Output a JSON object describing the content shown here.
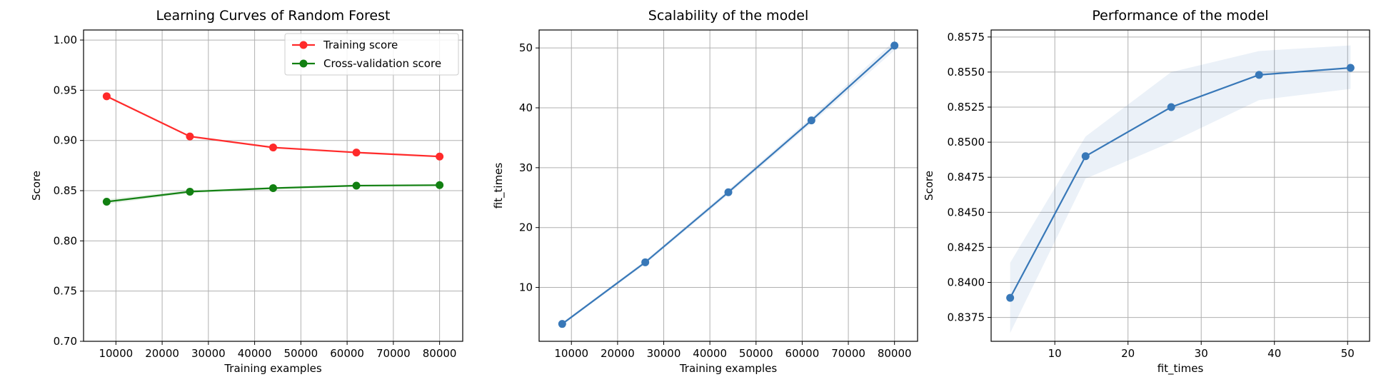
{
  "chart_data": [
    {
      "type": "line",
      "title": "Learning Curves of Random Forest",
      "xlabel": "Training examples",
      "ylabel": "Score",
      "xlim": [
        3000,
        85000
      ],
      "ylim": [
        0.7,
        1.01
      ],
      "xticks": [
        10000,
        20000,
        30000,
        40000,
        50000,
        60000,
        70000,
        80000
      ],
      "xtick_labels": [
        "10000",
        "20000",
        "30000",
        "40000",
        "50000",
        "60000",
        "70000",
        "80000"
      ],
      "yticks": [
        0.7,
        0.75,
        0.8,
        0.85,
        0.9,
        0.95,
        1.0
      ],
      "ytick_labels": [
        "0.70",
        "0.75",
        "0.80",
        "0.85",
        "0.90",
        "0.95",
        "1.00"
      ],
      "grid": true,
      "legend": "top-right",
      "x": [
        8000,
        26000,
        44000,
        62000,
        80000
      ],
      "series": [
        {
          "name": "Training score",
          "color": "#ff2a2a",
          "values": [
            0.944,
            0.904,
            0.893,
            0.888,
            0.884
          ],
          "band": [
            0.001,
            0.001,
            0.001,
            0.001,
            0.001
          ]
        },
        {
          "name": "Cross-validation score",
          "color": "#128012",
          "values": [
            0.839,
            0.849,
            0.8525,
            0.855,
            0.8555
          ],
          "band": [
            0.0025,
            0.0015,
            0.001,
            0.001,
            0.001
          ]
        }
      ]
    },
    {
      "type": "line",
      "title": "Scalability of the model",
      "xlabel": "Training examples",
      "ylabel": "fit_times",
      "xlim": [
        3000,
        85000
      ],
      "ylim": [
        1,
        53
      ],
      "xticks": [
        10000,
        20000,
        30000,
        40000,
        50000,
        60000,
        70000,
        80000
      ],
      "xtick_labels": [
        "10000",
        "20000",
        "30000",
        "40000",
        "50000",
        "60000",
        "70000",
        "80000"
      ],
      "yticks": [
        10,
        20,
        30,
        40,
        50
      ],
      "ytick_labels": [
        "10",
        "20",
        "30",
        "40",
        "50"
      ],
      "grid": true,
      "x": [
        8000,
        26000,
        44000,
        62000,
        80000
      ],
      "series": [
        {
          "color": "#3878b8",
          "values": [
            3.9,
            14.2,
            25.9,
            37.9,
            50.4
          ],
          "band": [
            0.2,
            0.3,
            0.4,
            0.5,
            0.8
          ]
        }
      ]
    },
    {
      "type": "line",
      "title": "Performance of the model",
      "xlabel": "fit_times",
      "ylabel": "Score",
      "xlim": [
        1.3,
        53.0
      ],
      "ylim": [
        0.8358,
        0.858
      ],
      "xticks": [
        10,
        20,
        30,
        40,
        50
      ],
      "xtick_labels": [
        "10",
        "20",
        "30",
        "40",
        "50"
      ],
      "yticks": [
        0.8375,
        0.84,
        0.8425,
        0.845,
        0.8475,
        0.85,
        0.8525,
        0.855,
        0.8575
      ],
      "ytick_labels": [
        "0.8375",
        "0.8400",
        "0.8425",
        "0.8450",
        "0.8475",
        "0.8500",
        "0.8525",
        "0.8550",
        "0.8575"
      ],
      "grid": true,
      "x": [
        3.9,
        14.2,
        25.9,
        37.9,
        50.4
      ],
      "series": [
        {
          "color": "#3878b8",
          "values": [
            0.8389,
            0.849,
            0.8525,
            0.8548,
            0.8553
          ],
          "band_low": [
            0.8364,
            0.8474,
            0.85,
            0.853,
            0.8538
          ],
          "band_high": [
            0.8414,
            0.8504,
            0.855,
            0.8565,
            0.8569
          ]
        }
      ]
    }
  ]
}
